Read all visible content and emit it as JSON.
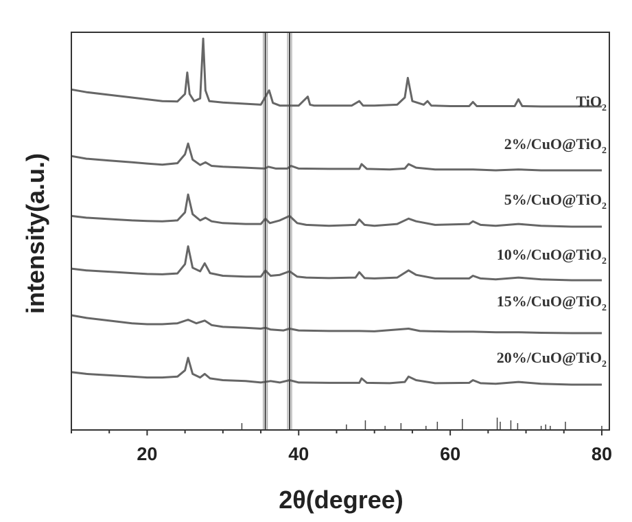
{
  "chart_data": {
    "type": "line",
    "xlabel": "2θ(degree)",
    "ylabel": "intensity(a.u.)",
    "xlim": [
      10,
      81
    ],
    "x_ticks": [
      20,
      40,
      60,
      80
    ],
    "grid": false,
    "stroke_color": "#666666",
    "highlight_bands": [
      [
        35.6,
        35.6
      ],
      [
        38.8,
        38.8
      ]
    ],
    "series": [
      {
        "name": "TiO2",
        "label_main": "TiO",
        "label_sub": "2",
        "x": [
          10,
          12,
          15,
          18,
          20,
          22,
          24,
          25,
          25.3,
          25.6,
          26.2,
          27,
          27.4,
          27.7,
          28.2,
          30,
          33,
          35,
          36.1,
          36.6,
          37.5,
          39.2,
          40,
          41.2,
          41.5,
          42,
          44,
          47,
          48,
          48.5,
          50,
          53,
          54,
          54.4,
          55,
          56.5,
          57,
          57.5,
          60,
          62.5,
          63,
          63.5,
          66,
          68.5,
          69,
          69.5,
          72,
          76,
          80
        ],
        "y": [
          0.95,
          0.8,
          0.65,
          0.5,
          0.4,
          0.3,
          0.28,
          0.7,
          1.9,
          0.7,
          0.3,
          0.45,
          3.8,
          0.9,
          0.3,
          0.22,
          0.15,
          0.1,
          0.9,
          0.2,
          0.05,
          0.05,
          0.05,
          0.55,
          0.1,
          0.05,
          0.05,
          0.05,
          0.3,
          0.05,
          0.05,
          0.1,
          0.5,
          1.6,
          0.3,
          0.1,
          0.3,
          0.05,
          0.02,
          0.02,
          0.25,
          0.02,
          0.02,
          0.02,
          0.4,
          0.02,
          0.0,
          0.0,
          0.0
        ]
      },
      {
        "name": "2%/CuO@TiO2",
        "label_main": "2%/CuO@TiO",
        "label_sub": "2",
        "x": [
          10,
          12,
          15,
          18,
          20,
          22,
          24,
          25,
          25.4,
          26,
          27,
          27.7,
          28.5,
          30,
          33,
          35.5,
          36,
          37,
          38.5,
          39,
          40,
          44,
          48,
          48.3,
          49,
          52,
          54,
          54.5,
          55.5,
          58,
          63,
          66,
          69,
          72,
          76,
          80
        ],
        "y": [
          0.8,
          0.65,
          0.55,
          0.45,
          0.38,
          0.32,
          0.4,
          0.9,
          1.5,
          0.6,
          0.3,
          0.45,
          0.25,
          0.2,
          0.15,
          0.1,
          0.2,
          0.1,
          0.1,
          0.25,
          0.1,
          0.08,
          0.08,
          0.35,
          0.08,
          0.05,
          0.1,
          0.35,
          0.15,
          0.05,
          0.05,
          0.0,
          0.05,
          0.0,
          0.0,
          0.0
        ]
      },
      {
        "name": "5%/CuO@TiO2",
        "label_main": "5%/CuO@TiO",
        "label_sub": "2",
        "x": [
          10,
          12,
          14,
          16,
          18,
          20,
          22,
          24,
          25,
          25.4,
          26,
          27,
          27.7,
          28.5,
          30,
          33,
          35,
          35.6,
          36.2,
          37.5,
          38.8,
          39.8,
          41,
          44,
          47.5,
          48,
          48.7,
          50,
          53,
          54.5,
          55.5,
          58,
          62.5,
          63,
          64,
          66,
          69,
          72,
          76,
          80
        ],
        "y": [
          0.6,
          0.5,
          0.45,
          0.4,
          0.35,
          0.32,
          0.3,
          0.35,
          0.8,
          1.8,
          0.7,
          0.35,
          0.5,
          0.3,
          0.2,
          0.15,
          0.15,
          0.45,
          0.2,
          0.35,
          0.6,
          0.2,
          0.1,
          0.05,
          0.1,
          0.4,
          0.1,
          0.05,
          0.15,
          0.45,
          0.3,
          0.1,
          0.15,
          0.3,
          0.1,
          0.05,
          0.15,
          0.05,
          0.0,
          0.0
        ]
      },
      {
        "name": "10%/CuO@TiO2",
        "label_main": "10%/CuO@TiO",
        "label_sub": "2",
        "x": [
          10,
          12,
          14,
          16,
          18,
          20,
          22,
          24,
          25,
          25.4,
          26,
          27,
          27.6,
          28.3,
          30,
          33,
          35,
          35.6,
          36.3,
          37.5,
          38.8,
          39.8,
          41,
          44,
          47.5,
          48,
          48.7,
          50,
          53,
          54.5,
          55.5,
          58,
          62.5,
          63,
          64,
          66,
          69,
          72,
          76,
          80
        ],
        "y": [
          0.65,
          0.55,
          0.5,
          0.45,
          0.4,
          0.35,
          0.33,
          0.38,
          0.9,
          1.9,
          0.7,
          0.5,
          0.95,
          0.4,
          0.25,
          0.2,
          0.2,
          0.55,
          0.25,
          0.3,
          0.5,
          0.2,
          0.15,
          0.12,
          0.15,
          0.45,
          0.12,
          0.1,
          0.15,
          0.55,
          0.3,
          0.1,
          0.1,
          0.25,
          0.1,
          0.05,
          0.15,
          0.05,
          0.0,
          0.0
        ]
      },
      {
        "name": "15%/CuO@TiO2",
        "label_main": "15%/CuO@TiO",
        "label_sub": "2",
        "x": [
          10,
          12,
          14,
          16,
          18,
          20,
          22,
          24,
          25.4,
          26.5,
          27.6,
          28.5,
          30,
          33,
          35,
          35.6,
          36.3,
          38,
          38.8,
          40,
          44,
          48,
          50,
          54.5,
          56,
          60,
          63,
          66,
          69,
          72,
          76,
          80
        ],
        "y": [
          1.0,
          0.85,
          0.75,
          0.65,
          0.55,
          0.5,
          0.5,
          0.55,
          0.75,
          0.55,
          0.7,
          0.45,
          0.35,
          0.3,
          0.25,
          0.3,
          0.2,
          0.15,
          0.25,
          0.15,
          0.12,
          0.12,
          0.1,
          0.25,
          0.12,
          0.08,
          0.08,
          0.05,
          0.05,
          0.02,
          0.0,
          0.0
        ]
      },
      {
        "name": "20%/CuO@TiO2",
        "label_main": "20%/CuO@TiO",
        "label_sub": "2",
        "x": [
          10,
          12,
          14,
          16,
          18,
          20,
          22,
          24,
          25,
          25.4,
          26,
          27,
          27.6,
          28.3,
          30,
          33,
          35,
          36.3,
          37.5,
          38.8,
          40,
          44,
          48,
          48.3,
          49,
          52,
          54,
          54.5,
          55.5,
          58,
          62.5,
          63,
          64,
          66,
          69,
          72,
          76,
          80
        ],
        "y": [
          0.7,
          0.6,
          0.55,
          0.5,
          0.45,
          0.4,
          0.4,
          0.45,
          0.8,
          1.5,
          0.6,
          0.4,
          0.6,
          0.35,
          0.25,
          0.2,
          0.12,
          0.2,
          0.12,
          0.25,
          0.12,
          0.1,
          0.1,
          0.35,
          0.1,
          0.08,
          0.15,
          0.45,
          0.25,
          0.08,
          0.1,
          0.25,
          0.08,
          0.05,
          0.15,
          0.05,
          0.0,
          0.0
        ]
      }
    ],
    "reference_sticks": [
      {
        "x": 32.5,
        "h": 0.25
      },
      {
        "x": 35.6,
        "h": 1.0
      },
      {
        "x": 38.8,
        "h": 1.0
      },
      {
        "x": 46.3,
        "h": 0.2
      },
      {
        "x": 48.8,
        "h": 0.35
      },
      {
        "x": 51.4,
        "h": 0.15
      },
      {
        "x": 53.5,
        "h": 0.25
      },
      {
        "x": 56.8,
        "h": 0.15
      },
      {
        "x": 58.3,
        "h": 0.3
      },
      {
        "x": 61.6,
        "h": 0.4
      },
      {
        "x": 66.2,
        "h": 0.45
      },
      {
        "x": 66.6,
        "h": 0.3
      },
      {
        "x": 68.0,
        "h": 0.35
      },
      {
        "x": 68.9,
        "h": 0.25
      },
      {
        "x": 72.0,
        "h": 0.15
      },
      {
        "x": 72.6,
        "h": 0.2
      },
      {
        "x": 73.2,
        "h": 0.15
      },
      {
        "x": 75.2,
        "h": 0.3
      },
      {
        "x": 80.0,
        "h": 0.15
      }
    ]
  }
}
